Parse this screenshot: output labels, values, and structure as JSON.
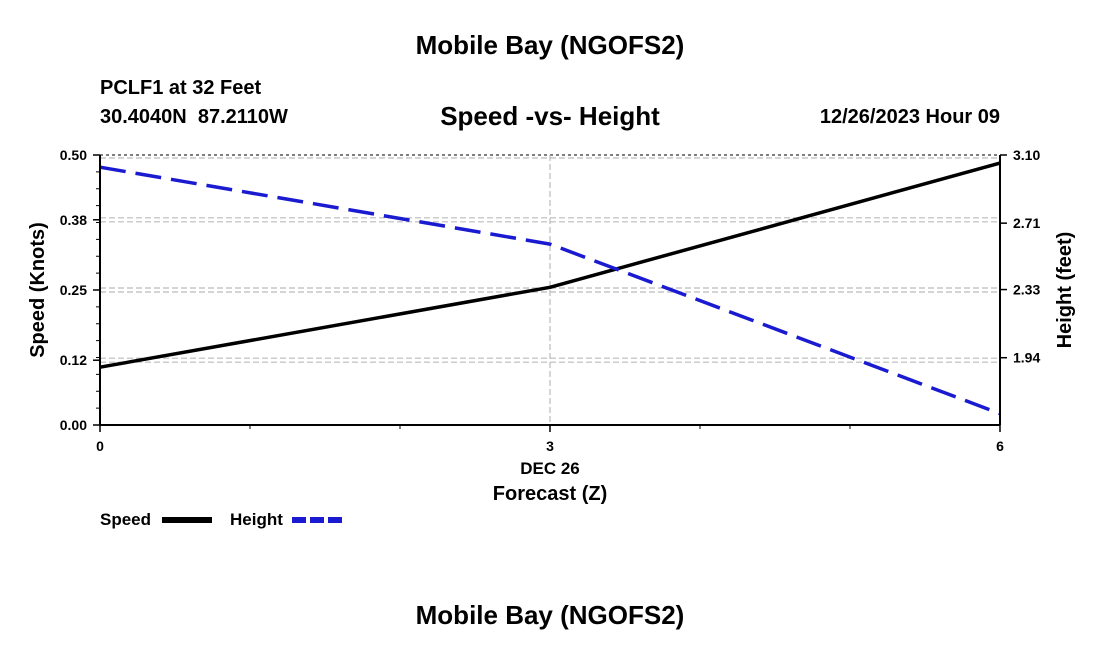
{
  "header": {
    "title": "Mobile Bay (NGOFS2)",
    "station": "PCLF1 at 32 Feet",
    "coords": "30.4040N  87.2110W",
    "subtitle": "Speed -vs- Height",
    "datetime": "12/26/2023 Hour 09"
  },
  "footer": {
    "title": "Mobile Bay (NGOFS2)"
  },
  "colors": {
    "speed": "#000000",
    "height": "#1a1ad0",
    "grid": "#bbbbbb"
  },
  "chart_data": {
    "type": "line",
    "title": "Speed -vs- Height",
    "xlabel_top": "DEC 26",
    "xlabel": "Forecast (Z)",
    "ylabel": "Speed (Knots)",
    "ylabel_right": "Height (feet)",
    "xlim": [
      0,
      6
    ],
    "ylim": [
      0,
      0.5
    ],
    "ylim_right": [
      1.555,
      3.1
    ],
    "x_ticks": [
      "0",
      "3",
      "6"
    ],
    "y_ticks": [
      "0.00",
      "0.12",
      "0.25",
      "0.38",
      "0.50"
    ],
    "y_ticks_right": [
      "1.94",
      "2.33",
      "2.71",
      "3.10"
    ],
    "grid": true,
    "legend_position": "bottom-left",
    "series": [
      {
        "name": "Speed",
        "axis": "left",
        "style": "solid",
        "x": [
          0,
          3,
          6
        ],
        "values": [
          0.107,
          0.255,
          0.485
        ]
      },
      {
        "name": "Height",
        "axis": "right",
        "style": "dashed",
        "x": [
          0,
          3,
          6
        ],
        "values": [
          3.03,
          2.59,
          1.62
        ]
      }
    ]
  }
}
